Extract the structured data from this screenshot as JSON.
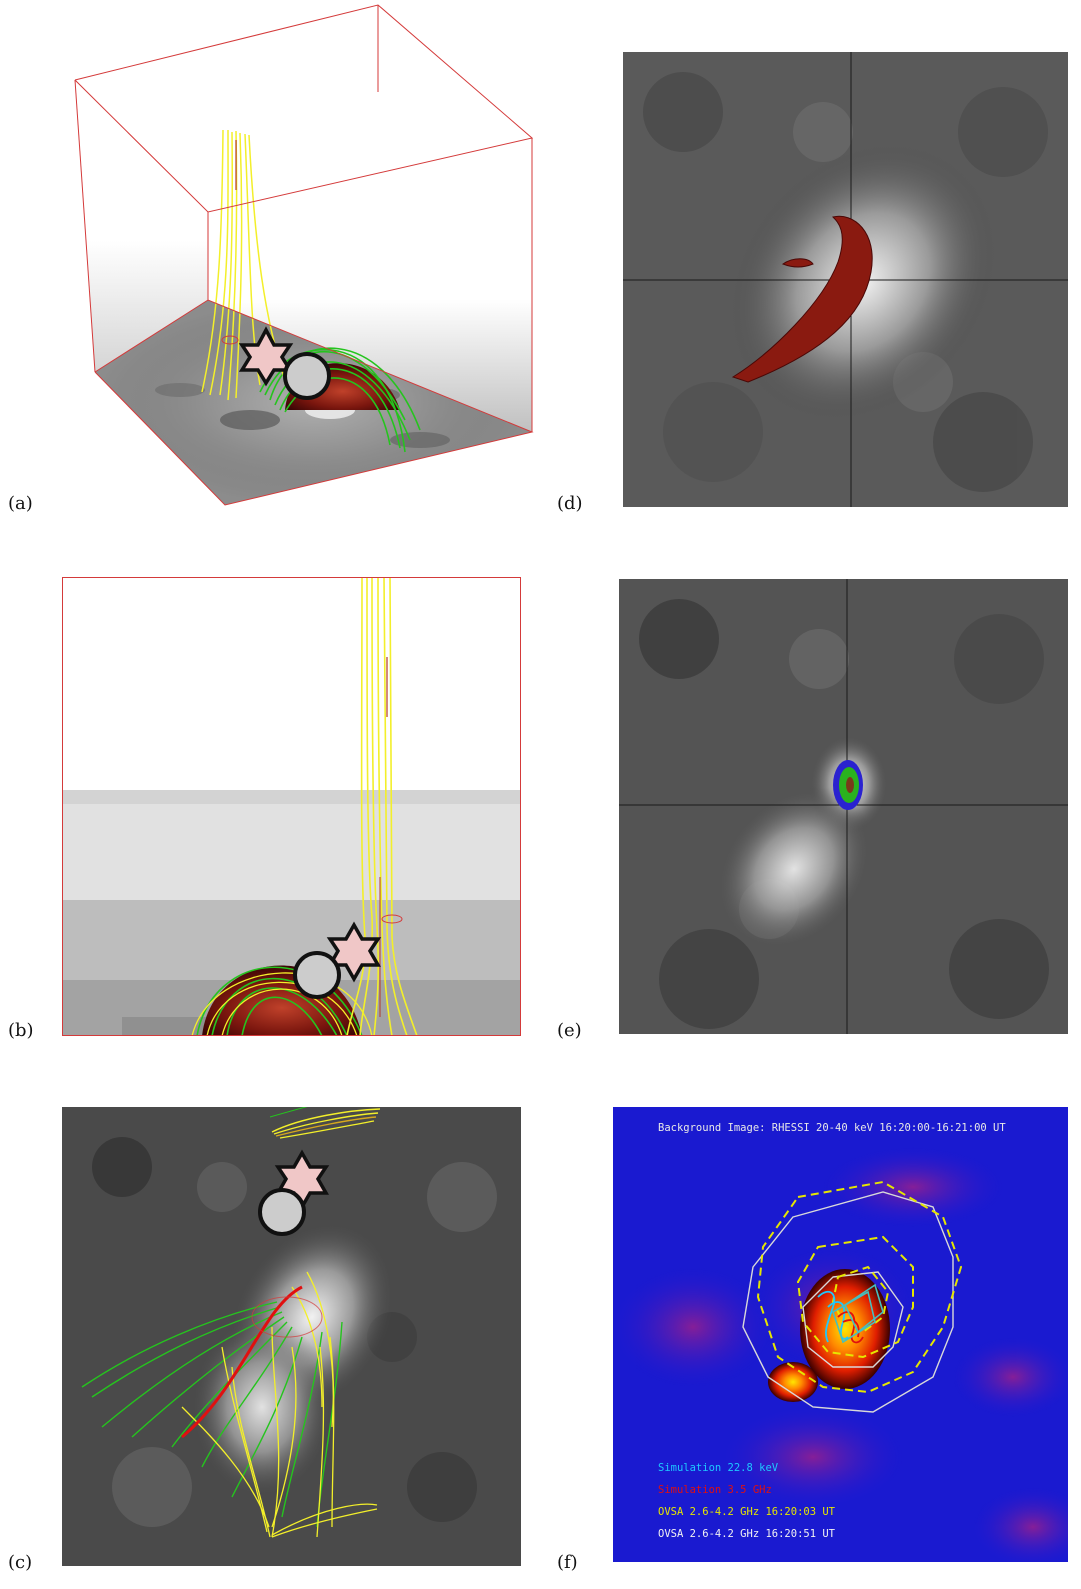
{
  "figure": {
    "panels": [
      {
        "label": "(a)"
      },
      {
        "label": "(b)"
      },
      {
        "label": "(c)"
      },
      {
        "label": "(d)"
      },
      {
        "label": "(e)"
      },
      {
        "label": "(f)"
      }
    ],
    "panel_f": {
      "header": "Background Image: RHESSI 20-40 keV 16:20:00-16:21:00 UT",
      "legend": [
        {
          "text": "Simulation 22.8 keV",
          "color": "#1ec8ff"
        },
        {
          "text": "Simulation 3.5 GHz",
          "color": "#e01010"
        },
        {
          "text": "OVSA 2.6-4.2 GHz 16:20:03 UT",
          "color": "#e6e600"
        },
        {
          "text": "OVSA 2.6-4.2 GHz 16:20:51 UT",
          "color": "#f2f2f2"
        }
      ]
    }
  },
  "colors": {
    "box_edge": "#d43a3a",
    "open_field_lines": "#f3ef2a",
    "closed_field_lines": "#25c41e",
    "source_red": "#8a1a10",
    "background_f": "#1a1ad0"
  }
}
